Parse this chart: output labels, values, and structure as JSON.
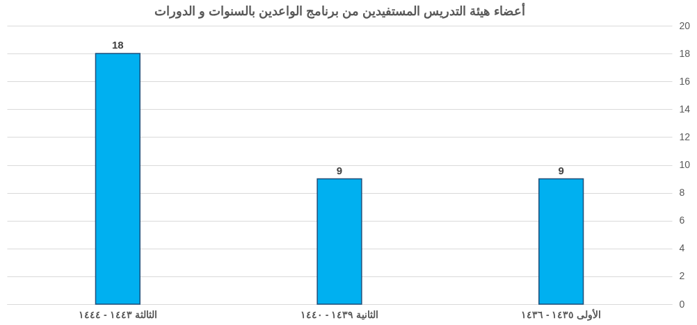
{
  "chart_data": {
    "type": "bar",
    "title": "أعضاء هيئة التدريس المستفيدين من برنامج الواعدين بالسنوات و الدورات",
    "categories": [
      "الثالثة ١٤٤٣ - ١٤٤٤",
      "الثانية ١٤٣٩ - ١٤٤٠",
      "الأولى ١٤٣٥ - ١٤٣٦"
    ],
    "values": [
      18,
      9,
      9
    ],
    "color": "#00b0f0",
    "ylim": [
      0,
      20
    ],
    "yticks": [
      0,
      2,
      4,
      6,
      8,
      10,
      12,
      14,
      16,
      18,
      20
    ],
    "grid": "y",
    "data_labels": true
  }
}
